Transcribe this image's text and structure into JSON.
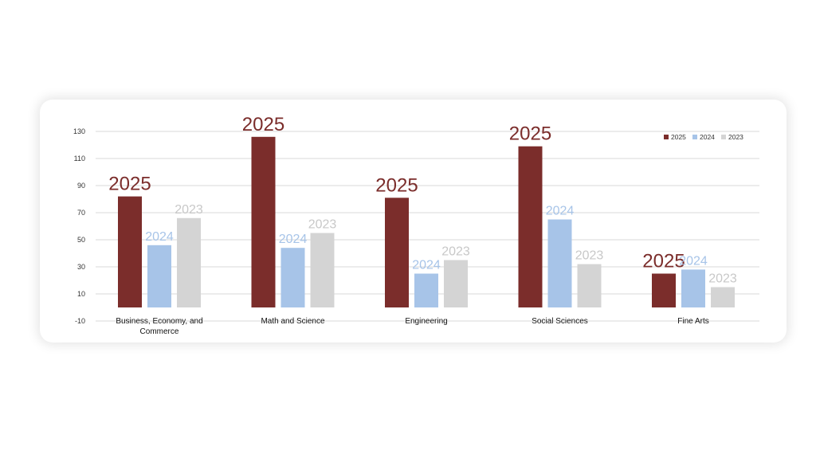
{
  "chart_data": {
    "type": "bar",
    "categories": [
      "Business, Economy, and Commerce",
      "Math and Science",
      "Engineering",
      "Social Sciences",
      "Fine Arts"
    ],
    "category_lines": [
      [
        "Business, Economy, and",
        "Commerce"
      ],
      [
        "Math and Science"
      ],
      [
        "Engineering"
      ],
      [
        "Social Sciences"
      ],
      [
        "Fine Arts"
      ]
    ],
    "series": [
      {
        "name": "2025",
        "values": [
          82,
          126,
          81,
          119,
          25
        ],
        "color": "#7b2d2b"
      },
      {
        "name": "2024",
        "values": [
          46,
          44,
          25,
          65,
          28
        ],
        "color": "#a7c4e8"
      },
      {
        "name": "2023",
        "values": [
          66,
          55,
          35,
          32,
          15
        ],
        "color": "#d4d4d4"
      }
    ],
    "y_ticks": [
      -10,
      10,
      30,
      50,
      70,
      90,
      110,
      130
    ],
    "ylim": [
      -10,
      130
    ],
    "grid": true,
    "legend_position": "top-right",
    "data_label_colors": {
      "2025": "#7b2d2b",
      "2024": "#a7c4e8",
      "2023": "#c8c8c8"
    }
  }
}
